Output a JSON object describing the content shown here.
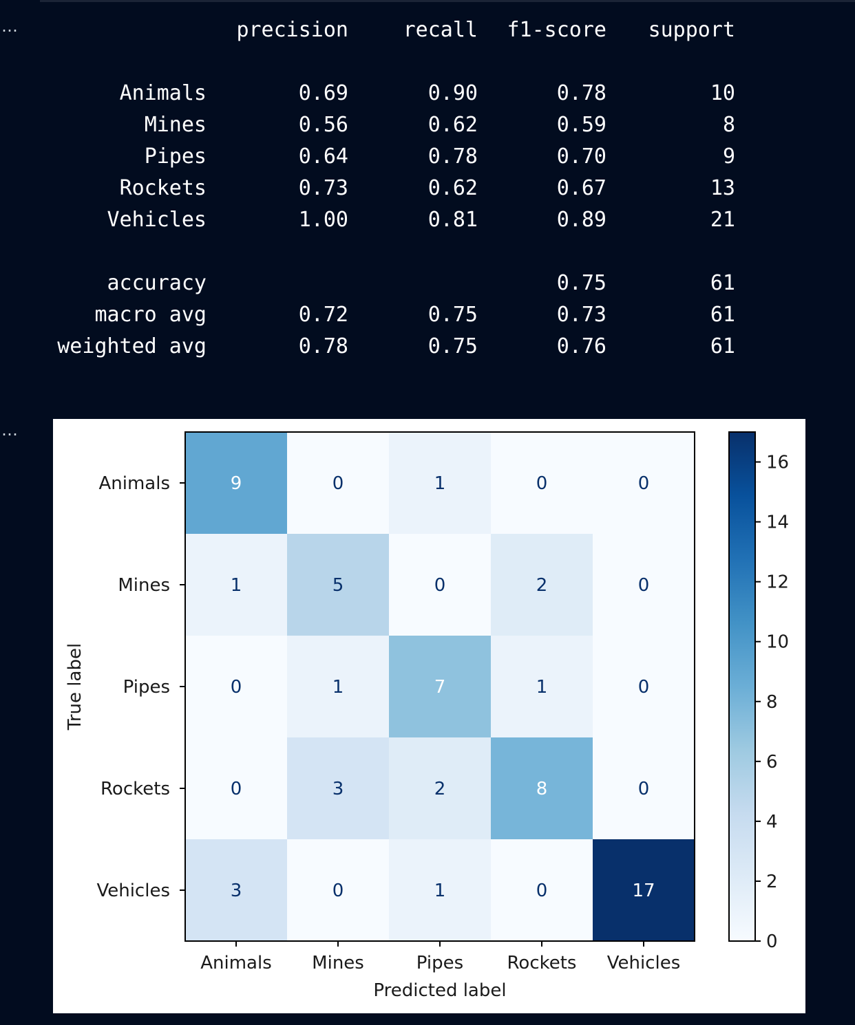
{
  "output_prompts": [
    "…",
    "…"
  ],
  "report": {
    "columns": [
      "precision",
      "recall",
      "f1-score",
      "support"
    ],
    "rows": [
      {
        "label": "Animals",
        "precision": "0.69",
        "recall": "0.90",
        "f1": "0.78",
        "support": "10"
      },
      {
        "label": "Mines",
        "precision": "0.56",
        "recall": "0.62",
        "f1": "0.59",
        "support": "8"
      },
      {
        "label": "Pipes",
        "precision": "0.64",
        "recall": "0.78",
        "f1": "0.70",
        "support": "9"
      },
      {
        "label": "Rockets",
        "precision": "0.73",
        "recall": "0.62",
        "f1": "0.67",
        "support": "13"
      },
      {
        "label": "Vehicles",
        "precision": "1.00",
        "recall": "0.81",
        "f1": "0.89",
        "support": "21"
      }
    ],
    "summary": [
      {
        "label": "accuracy",
        "precision": "",
        "recall": "",
        "f1": "0.75",
        "support": "61"
      },
      {
        "label": "macro avg",
        "precision": "0.72",
        "recall": "0.75",
        "f1": "0.73",
        "support": "61"
      },
      {
        "label": "weighted avg",
        "precision": "0.78",
        "recall": "0.75",
        "f1": "0.76",
        "support": "61"
      }
    ]
  },
  "chart_data": {
    "type": "heatmap",
    "title": "",
    "xlabel": "Predicted label",
    "ylabel": "True label",
    "x_categories": [
      "Animals",
      "Mines",
      "Pipes",
      "Rockets",
      "Vehicles"
    ],
    "y_categories": [
      "Animals",
      "Mines",
      "Pipes",
      "Rockets",
      "Vehicles"
    ],
    "values": [
      [
        9,
        0,
        1,
        0,
        0
      ],
      [
        1,
        5,
        0,
        2,
        0
      ],
      [
        0,
        1,
        7,
        1,
        0
      ],
      [
        0,
        3,
        2,
        8,
        0
      ],
      [
        3,
        0,
        1,
        0,
        17
      ]
    ],
    "colormap": "Blues",
    "colorbar": {
      "min": 0,
      "max": 17,
      "ticks": [
        0,
        2,
        4,
        6,
        8,
        10,
        12,
        14,
        16
      ]
    },
    "colors": {
      "low": "#f7fbff",
      "high": "#08306b",
      "text_light": "#ffffff",
      "text_dark": "#08306b"
    }
  }
}
